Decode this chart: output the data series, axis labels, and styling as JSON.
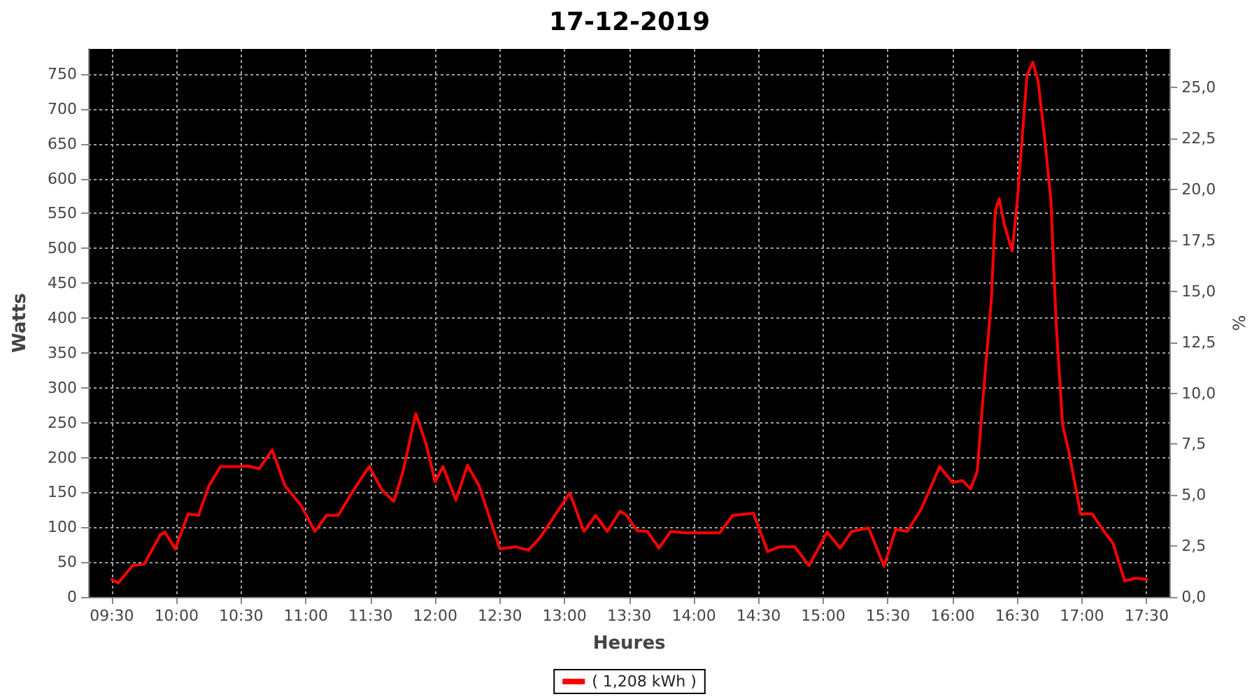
{
  "chart_data": {
    "type": "line",
    "title": "17-12-2019",
    "xlabel": "Heures",
    "ylabel": "Watts",
    "y2label": "%",
    "xlim": [
      9.317,
      17.683
    ],
    "xticks": [
      {
        "value": 9.5,
        "label": "09:30"
      },
      {
        "value": 10,
        "label": "10:00"
      },
      {
        "value": 10.5,
        "label": "10:30"
      },
      {
        "value": 11,
        "label": "11:00"
      },
      {
        "value": 11.5,
        "label": "11:30"
      },
      {
        "value": 12,
        "label": "12:00"
      },
      {
        "value": 12.5,
        "label": "12:30"
      },
      {
        "value": 13,
        "label": "13:00"
      },
      {
        "value": 13.5,
        "label": "13:30"
      },
      {
        "value": 14,
        "label": "14:00"
      },
      {
        "value": 14.5,
        "label": "14:30"
      },
      {
        "value": 15,
        "label": "15:00"
      },
      {
        "value": 15.5,
        "label": "15:30"
      },
      {
        "value": 16,
        "label": "16:00"
      },
      {
        "value": 16.5,
        "label": "16:30"
      },
      {
        "value": 17,
        "label": "17:00"
      },
      {
        "value": 17.5,
        "label": "17:30"
      }
    ],
    "ylim": [
      0,
      786
    ],
    "yticks": [
      0,
      50,
      100,
      150,
      200,
      250,
      300,
      350,
      400,
      450,
      500,
      550,
      600,
      650,
      700,
      750
    ],
    "y2lim": [
      0,
      26.9
    ],
    "y2ticks": [
      {
        "value": 0,
        "label": "0,0"
      },
      {
        "value": 2.5,
        "label": "2,5"
      },
      {
        "value": 5,
        "label": "5,0"
      },
      {
        "value": 7.5,
        "label": "7,5"
      },
      {
        "value": 10,
        "label": "10,0"
      },
      {
        "value": 12.5,
        "label": "12,5"
      },
      {
        "value": 15,
        "label": "15,0"
      },
      {
        "value": 17.5,
        "label": "17,5"
      },
      {
        "value": 20,
        "label": "20,0"
      },
      {
        "value": 22.5,
        "label": "22,5"
      },
      {
        "value": 25,
        "label": "25,0"
      }
    ],
    "grid": true,
    "legend": "bottom",
    "marker": "none",
    "line_style": "solid",
    "series": [
      {
        "name": "( 1,208 kWh )",
        "color": "#ff0000",
        "x": [
          9.5,
          9.55,
          9.66,
          9.75,
          9.875,
          9.91,
          9.99,
          10.09,
          10.17,
          10.25,
          10.34,
          10.48,
          10.55,
          10.64,
          10.74,
          10.84,
          10.96,
          11.07,
          11.16,
          11.25,
          11.375,
          11.49,
          11.59,
          11.68,
          11.75,
          11.85,
          11.93,
          12.0,
          12.06,
          12.16,
          12.25,
          12.34,
          12.5,
          12.62,
          12.72,
          12.81,
          13.04,
          13.15,
          13.24,
          13.33,
          13.43,
          13.48,
          13.56,
          13.64,
          13.73,
          13.82,
          13.93,
          14.2,
          14.3,
          14.46,
          14.57,
          14.66,
          14.78,
          14.89,
          15.03,
          15.13,
          15.22,
          15.35,
          15.47,
          15.56,
          15.65,
          15.76,
          15.9,
          16.0,
          16.075,
          16.14,
          16.19,
          16.23,
          16.3,
          16.33,
          16.36,
          16.4,
          16.46,
          16.5,
          16.575,
          16.62,
          16.66,
          16.71,
          16.76,
          16.8,
          16.85,
          16.9,
          16.99,
          17.08,
          17.17,
          17.24,
          17.33,
          17.42,
          17.5
        ],
        "values": [
          25,
          20,
          45,
          47,
          89,
          93,
          69,
          119,
          117,
          159,
          187,
          187,
          188,
          184,
          211,
          159,
          132,
          94,
          117,
          117,
          155,
          187,
          153,
          137,
          179,
          263,
          219,
          165,
          187,
          139,
          189,
          159,
          69,
          72,
          67,
          85,
          149,
          94,
          117,
          94,
          123,
          117,
          95,
          94,
          70,
          94,
          92,
          92,
          117,
          120,
          65,
          72,
          72,
          45,
          93,
          70,
          94,
          99,
          44,
          97,
          94,
          127,
          187,
          164,
          167,
          155,
          180,
          274,
          428,
          554,
          571,
          534,
          496,
          568,
          748,
          767,
          741,
          661,
          568,
          394,
          247,
          207,
          119,
          119,
          94,
          77,
          23,
          27,
          25
        ]
      }
    ]
  }
}
